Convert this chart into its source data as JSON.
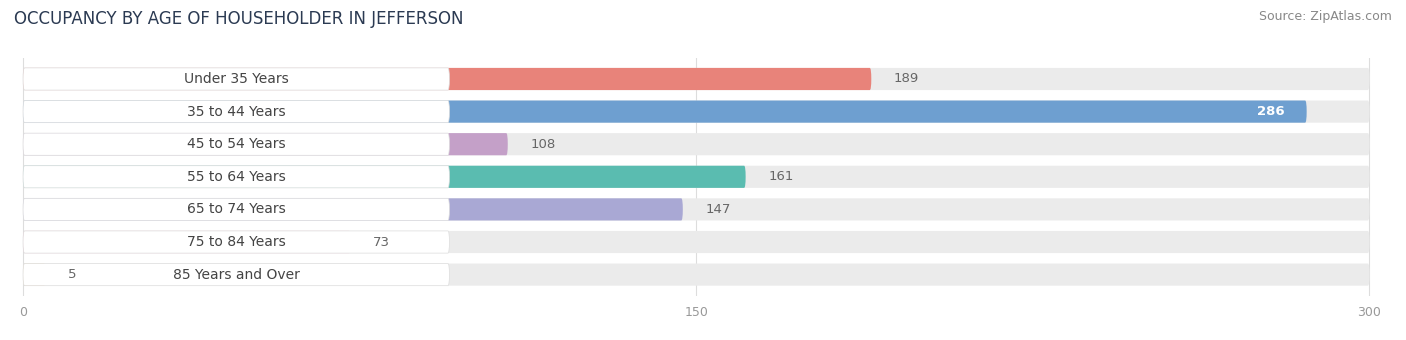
{
  "title": "OCCUPANCY BY AGE OF HOUSEHOLDER IN JEFFERSON",
  "source": "Source: ZipAtlas.com",
  "categories": [
    "Under 35 Years",
    "35 to 44 Years",
    "45 to 54 Years",
    "55 to 64 Years",
    "65 to 74 Years",
    "75 to 84 Years",
    "85 Years and Over"
  ],
  "values": [
    189,
    286,
    108,
    161,
    147,
    73,
    5
  ],
  "bar_colors": [
    "#E8837A",
    "#6E9FD0",
    "#C4A0C8",
    "#5ABCB0",
    "#A9A8D4",
    "#F4A0B5",
    "#F5D5A0"
  ],
  "track_color": "#EBEBEB",
  "xlim_max": 300,
  "xticks": [
    0,
    150,
    300
  ],
  "bar_height": 0.68,
  "title_fontsize": 12,
  "label_fontsize": 10,
  "value_fontsize": 9.5,
  "source_fontsize": 9,
  "background_color": "#FFFFFF",
  "label_bg_color": "#FFFFFF",
  "label_text_color": "#444444",
  "value_color_inside": "#FFFFFF",
  "value_color_outside": "#666666",
  "inside_threshold": 200,
  "grid_color": "#DDDDDD",
  "tick_color": "#999999"
}
